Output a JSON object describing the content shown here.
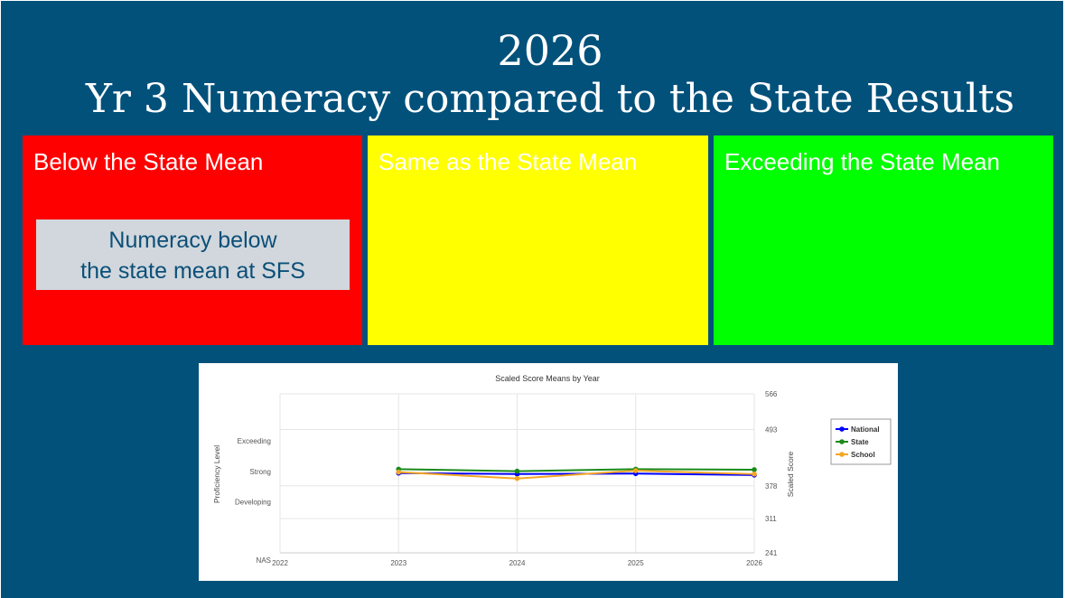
{
  "slide": {
    "year": "2026",
    "title": "Yr 3 Numeracy compared to the State Results"
  },
  "panels": [
    {
      "label": "Below the State Mean",
      "color": "#ff0000"
    },
    {
      "label": "Same as the State Mean",
      "color": "#ffff00"
    },
    {
      "label": "Exceeding the State Mean",
      "color": "#00ff00"
    }
  ],
  "note": {
    "line1": "Numeracy below",
    "line2": "the state mean at SFS"
  },
  "colors": {
    "background": "#02517b",
    "note_bg": "#d1d7dc",
    "note_text": "#0b4f79"
  },
  "chart_data": {
    "type": "line",
    "title": "Scaled Score Means by Year",
    "xlabel": "",
    "ylabel_left": "Proficiency Level",
    "ylabel_right": "Scaled Score",
    "x": [
      "2022",
      "2023",
      "2024",
      "2025",
      "2026"
    ],
    "y_ticks_right": [
      241,
      311,
      378,
      493,
      566
    ],
    "y_ticks_left": [
      "NAS",
      "Developing",
      "Strong",
      "Exceeding"
    ],
    "ylim": [
      241,
      566
    ],
    "grid": true,
    "legend_position": "right",
    "series": [
      {
        "name": "National",
        "color": "#0000ff",
        "x": [
          "2023",
          "2024",
          "2025",
          "2026"
        ],
        "values": [
          404,
          402,
          403,
          400
        ]
      },
      {
        "name": "State",
        "color": "#1a8a1a",
        "x": [
          "2023",
          "2024",
          "2025",
          "2026"
        ],
        "values": [
          412,
          408,
          412,
          411
        ]
      },
      {
        "name": "School",
        "color": "#f5a623",
        "x": [
          "2023",
          "2024",
          "2025",
          "2026"
        ],
        "values": [
          406,
          393,
          409,
          402
        ]
      }
    ]
  }
}
